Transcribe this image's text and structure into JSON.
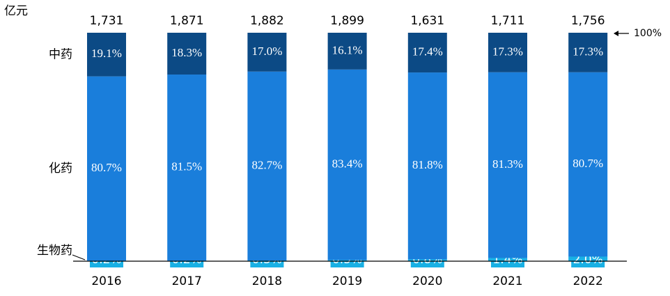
{
  "chart_data": {
    "type": "stacked_bar_percent",
    "y_label": "亿元",
    "annotation": "100%",
    "categories": [
      "2016",
      "2017",
      "2018",
      "2019",
      "2020",
      "2021",
      "2022"
    ],
    "totals": {
      "values": [
        1731,
        1871,
        1882,
        1899,
        1631,
        1711,
        1756
      ],
      "value_labels": [
        "1,731",
        "1,871",
        "1,882",
        "1,899",
        "1,631",
        "1,711",
        "1,756"
      ]
    },
    "ylim": [
      0,
      100
    ],
    "series": [
      {
        "name": "生物药",
        "color": "#19b0e4",
        "values": [
          0.2,
          0.2,
          0.3,
          0.5,
          0.8,
          1.4,
          2.0
        ],
        "value_labels": [
          "0.2%",
          "0.2%",
          "0.3%",
          "0.5%",
          "0.8%",
          "1.4%",
          "2.0%"
        ]
      },
      {
        "name": "化药",
        "color": "#1a7edb",
        "values": [
          80.7,
          81.5,
          82.7,
          83.4,
          81.8,
          81.3,
          80.7
        ],
        "value_labels": [
          "80.7%",
          "81.5%",
          "82.7%",
          "83.4%",
          "81.8%",
          "81.3%",
          "80.7%"
        ]
      },
      {
        "name": "中药",
        "color": "#0c4a85",
        "values": [
          19.1,
          18.3,
          17.0,
          16.1,
          17.4,
          17.3,
          17.3
        ],
        "value_labels": [
          "19.1%",
          "18.3%",
          "17.0%",
          "16.1%",
          "17.4%",
          "17.3%",
          "17.3%"
        ]
      }
    ]
  }
}
